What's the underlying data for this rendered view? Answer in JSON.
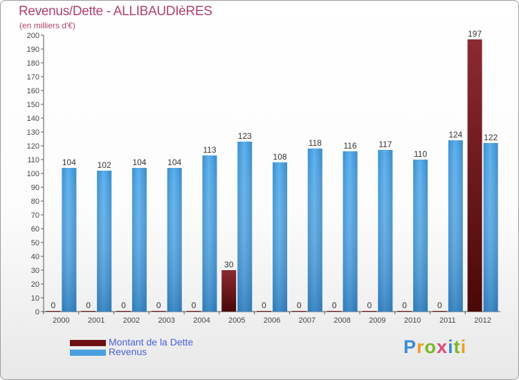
{
  "header": {
    "title": "Revenus/Dette - ALLIBAUDIèRES",
    "subtitle": "(en milliers d'€)"
  },
  "colors": {
    "dette": "#7a1a22",
    "revenus": "#4aa0e0",
    "title": "#b0406e",
    "legend_text": "#4a5fd8"
  },
  "chart_data": {
    "type": "bar",
    "categories": [
      "2000",
      "2001",
      "2002",
      "2003",
      "2004",
      "2005",
      "2006",
      "2007",
      "2008",
      "2009",
      "2010",
      "2011",
      "2012"
    ],
    "series": [
      {
        "name": "Montant de la Dette",
        "values": [
          0,
          0,
          0,
          0,
          0,
          30,
          0,
          0,
          0,
          0,
          0,
          0,
          197
        ]
      },
      {
        "name": "Revenus",
        "values": [
          104,
          102,
          104,
          104,
          113,
          123,
          108,
          118,
          116,
          117,
          110,
          124,
          122
        ]
      }
    ],
    "ylim": [
      0,
      200
    ],
    "yticks": [
      0,
      10,
      20,
      30,
      40,
      50,
      60,
      70,
      80,
      90,
      100,
      110,
      120,
      130,
      140,
      150,
      160,
      170,
      180,
      190,
      200
    ],
    "grid": false,
    "data_labels": true,
    "legend_position": "bottom-left"
  },
  "legend": [
    {
      "label": "Montant de la Dette"
    },
    {
      "label": "Revenus"
    }
  ],
  "logo": {
    "letters": [
      "P",
      "r",
      "o",
      "x",
      "i",
      "t",
      "i"
    ]
  }
}
